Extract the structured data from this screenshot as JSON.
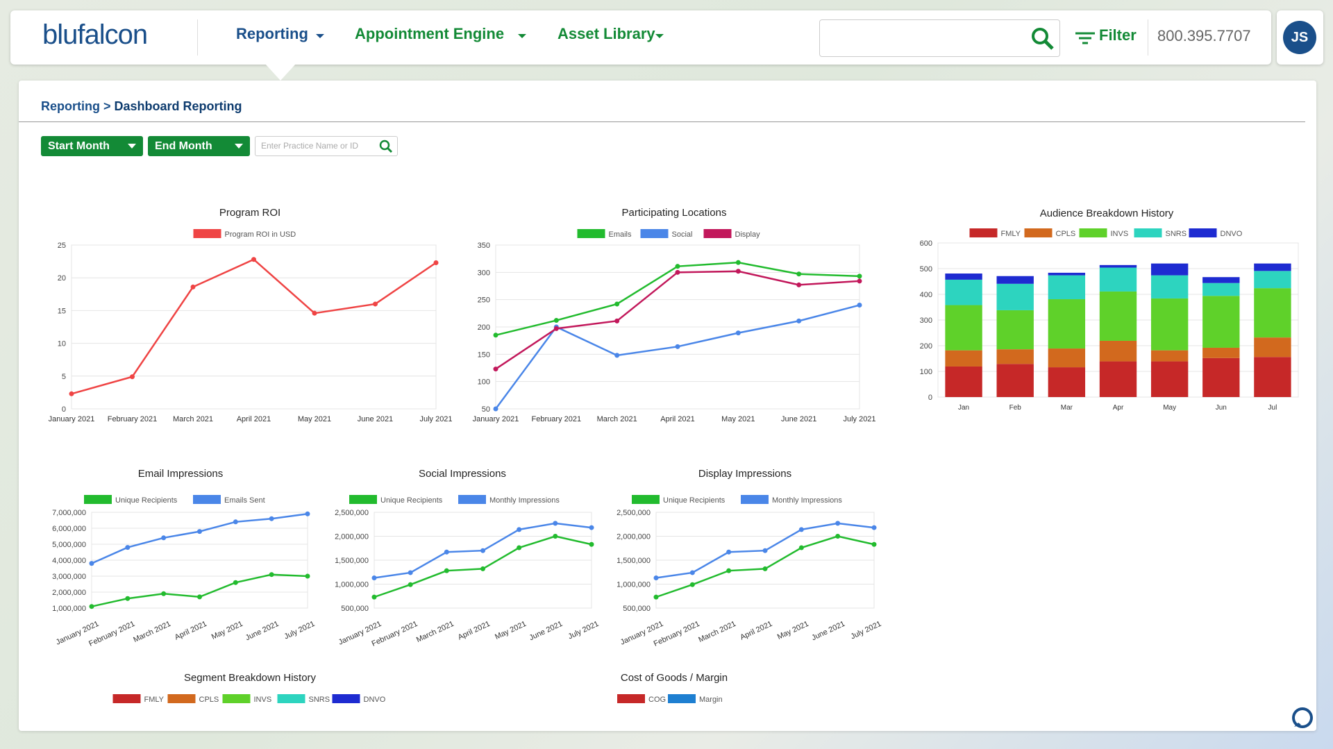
{
  "header": {
    "logo": "blufalcon",
    "nav": [
      "Reporting",
      "Appointment Engine",
      "Asset Library"
    ],
    "filter": "Filter",
    "phone": "800.395.7707",
    "avatar": "JS"
  },
  "breadcrumb": {
    "parent": "Reporting >",
    "current": "Dashboard Reporting"
  },
  "filters": {
    "start": "Start Month",
    "end": "End Month",
    "search_placeholder": "Enter Practice Name or ID"
  },
  "chart_data": [
    {
      "type": "line",
      "title": "Program ROI",
      "categories": [
        "January 2021",
        "February 2021",
        "March 2021",
        "April 2021",
        "May 2021",
        "June 2021",
        "July 2021"
      ],
      "series": [
        {
          "name": "Program ROI in USD",
          "color": "#ef4444",
          "values": [
            2.3,
            4.9,
            18.6,
            22.8,
            14.6,
            16.0,
            22.3
          ]
        }
      ],
      "ylim": [
        0,
        25
      ],
      "yticks": [
        0,
        5,
        10,
        15,
        20,
        25
      ],
      "grid": true
    },
    {
      "type": "line",
      "title": "Participating Locations",
      "categories": [
        "January 2021",
        "February 2021",
        "March 2021",
        "April 2021",
        "May 2021",
        "June 2021",
        "July 2021"
      ],
      "series": [
        {
          "name": "Emails",
          "color": "#22bb2e",
          "values": [
            185,
            212,
            242,
            311,
            318,
            297,
            293
          ]
        },
        {
          "name": "Social",
          "color": "#4a86e8",
          "values": [
            50,
            200,
            148,
            164,
            189,
            211,
            240
          ]
        },
        {
          "name": "Display",
          "color": "#c2185b",
          "values": [
            123,
            197,
            211,
            300,
            302,
            277,
            284
          ]
        }
      ],
      "ylim": [
        50,
        350
      ],
      "yticks": [
        50,
        100,
        150,
        200,
        250,
        300,
        350
      ],
      "grid": true
    },
    {
      "type": "bar",
      "title": "Audience Breakdown History",
      "categories": [
        "Jan",
        "Feb",
        "Mar",
        "Apr",
        "May",
        "Jun",
        "Jul"
      ],
      "series": [
        {
          "name": "FMLY",
          "color": "#c62828",
          "values": [
            119,
            129,
            116,
            139,
            139,
            152,
            156
          ]
        },
        {
          "name": "CPLS",
          "color": "#d2691e",
          "values": [
            63,
            57,
            73,
            80,
            43,
            40,
            76
          ]
        },
        {
          "name": "INVS",
          "color": "#5fd12a",
          "values": [
            176,
            152,
            192,
            192,
            202,
            202,
            192
          ]
        },
        {
          "name": "SNRS",
          "color": "#2dd4bf",
          "values": [
            99,
            103,
            93,
            93,
            90,
            50,
            67
          ]
        },
        {
          "name": "DNVO",
          "color": "#1e2bd1",
          "values": [
            24,
            30,
            10,
            10,
            46,
            23,
            29
          ]
        }
      ],
      "ylim": [
        0,
        600
      ],
      "yticks": [
        0,
        100,
        200,
        300,
        400,
        500,
        600
      ],
      "grid": true
    },
    {
      "type": "line",
      "title": "Email Impressions",
      "categories": [
        "January 2021",
        "February 2021",
        "March 2021",
        "April 2021",
        "May 2021",
        "June 2021",
        "July 2021"
      ],
      "series": [
        {
          "name": "Unique Recipients",
          "color": "#22bb2e",
          "values": [
            1100000,
            1600000,
            1900000,
            1700000,
            2600000,
            3100000,
            3000000
          ]
        },
        {
          "name": "Emails Sent",
          "color": "#4a86e8",
          "values": [
            3800000,
            4800000,
            5400000,
            5800000,
            6400000,
            6600000,
            6900000
          ]
        }
      ],
      "ylim": [
        1000000,
        7000000
      ],
      "yticks": [
        {
          "value": 1000000,
          "label": "1,000,000"
        },
        {
          "value": 2000000,
          "label": "2,000,000"
        },
        {
          "value": 3000000,
          "label": "3,000,000"
        },
        {
          "value": 4000000,
          "label": "4,000,000"
        },
        {
          "value": 5000000,
          "label": "5,000,000"
        },
        {
          "value": 6000000,
          "label": "6,000,000"
        },
        {
          "value": 7000000,
          "label": "7,000,000"
        }
      ],
      "grid": true
    },
    {
      "type": "line",
      "title": "Social Impressions",
      "categories": [
        "January 2021",
        "February 2021",
        "March 2021",
        "April 2021",
        "May 2021",
        "June 2021",
        "July 2021"
      ],
      "series": [
        {
          "name": "Unique Recipients",
          "color": "#22bb2e",
          "values": [
            730000,
            990000,
            1280000,
            1320000,
            1760000,
            2000000,
            1830000
          ]
        },
        {
          "name": "Monthly Impressions",
          "color": "#4a86e8",
          "values": [
            1130000,
            1240000,
            1670000,
            1700000,
            2140000,
            2270000,
            2180000
          ]
        }
      ],
      "ylim": [
        500000,
        2500000
      ],
      "yticks": [
        {
          "value": 500000,
          "label": "500,000"
        },
        {
          "value": 1000000,
          "label": "1,000,000"
        },
        {
          "value": 1500000,
          "label": "1,500,000"
        },
        {
          "value": 2000000,
          "label": "2,000,000"
        },
        {
          "value": 2500000,
          "label": "2,500,000"
        }
      ],
      "grid": true
    },
    {
      "type": "line",
      "title": "Display Impressions",
      "categories": [
        "January 2021",
        "February 2021",
        "March 2021",
        "April 2021",
        "May 2021",
        "June 2021",
        "July 2021"
      ],
      "series": [
        {
          "name": "Unique Recipients",
          "color": "#22bb2e",
          "values": [
            730000,
            990000,
            1280000,
            1320000,
            1760000,
            2000000,
            1830000
          ]
        },
        {
          "name": "Monthly Impressions",
          "color": "#4a86e8",
          "values": [
            1130000,
            1240000,
            1670000,
            1700000,
            2140000,
            2270000,
            2180000
          ]
        }
      ],
      "ylim": [
        500000,
        2500000
      ],
      "yticks": [
        {
          "value": 500000,
          "label": "500,000"
        },
        {
          "value": 1000000,
          "label": "1,000,000"
        },
        {
          "value": 1500000,
          "label": "1,500,000"
        },
        {
          "value": 2000000,
          "label": "2,000,000"
        },
        {
          "value": 2500000,
          "label": "2,500,000"
        }
      ],
      "grid": true
    },
    {
      "type": "bar",
      "title": "Segment Breakdown History",
      "series": [
        {
          "name": "FMLY",
          "color": "#c62828"
        },
        {
          "name": "CPLS",
          "color": "#d2691e"
        },
        {
          "name": "INVS",
          "color": "#5fd12a"
        },
        {
          "name": "SNRS",
          "color": "#2dd4bf"
        },
        {
          "name": "DNVO",
          "color": "#1e2bd1"
        }
      ]
    },
    {
      "type": "bar",
      "title": "Cost of Goods / Margin",
      "series": [
        {
          "name": "COG",
          "color": "#c62828"
        },
        {
          "name": "Margin",
          "color": "#1e7fd1"
        }
      ]
    }
  ]
}
